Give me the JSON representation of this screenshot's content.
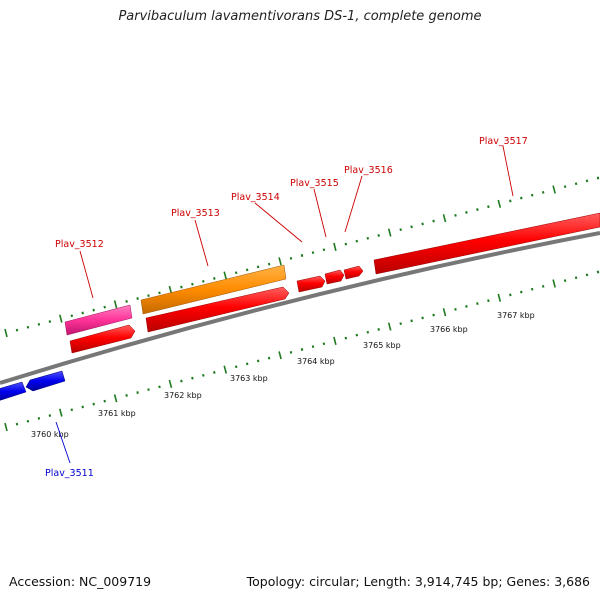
{
  "title": "Parvibaculum lavamentivorans DS-1, complete genome",
  "footer": {
    "accession": "Accession: NC_009719",
    "topology": "Topology: circular; Length: 3,914,745 bp; Genes: 3,686"
  },
  "colors": {
    "backbone": "#808080",
    "ticks": "#1e7a1e",
    "forward_label": "#cc0000",
    "reverse_label": "#0000cc",
    "gene_red": "#ff0000",
    "gene_orange": "#ff8c00",
    "gene_pink": "#ff3399",
    "gene_blue": "#0000ee"
  },
  "scale_labels": [
    "3760 kbp",
    "3761 kbp",
    "3762 kbp",
    "3763 kbp",
    "3764 kbp",
    "3765 kbp",
    "3766 kbp",
    "3767 kbp"
  ],
  "gene_labels": [
    {
      "id": "g3511",
      "text": "Plav_3511",
      "strand": "reverse"
    },
    {
      "id": "g3512",
      "text": "Plav_3512",
      "strand": "forward"
    },
    {
      "id": "g3513",
      "text": "Plav_3513",
      "strand": "forward"
    },
    {
      "id": "g3514",
      "text": "Plav_3514",
      "strand": "forward"
    },
    {
      "id": "g3515",
      "text": "Plav_3515",
      "strand": "forward"
    },
    {
      "id": "g3516",
      "text": "Plav_3516",
      "strand": "forward"
    },
    {
      "id": "g3517",
      "text": "Plav_3517",
      "strand": "forward"
    }
  ],
  "features": [
    {
      "name": "pink-gene-feature",
      "color_key": "gene_pink",
      "strand": "forward"
    },
    {
      "name": "orange-gene-feature",
      "color_key": "gene_orange",
      "strand": "forward"
    },
    {
      "name": "red-gene-feature",
      "color_key": "gene_red",
      "strand": "forward"
    },
    {
      "name": "blue-gene-feature",
      "color_key": "gene_blue",
      "strand": "reverse"
    }
  ]
}
